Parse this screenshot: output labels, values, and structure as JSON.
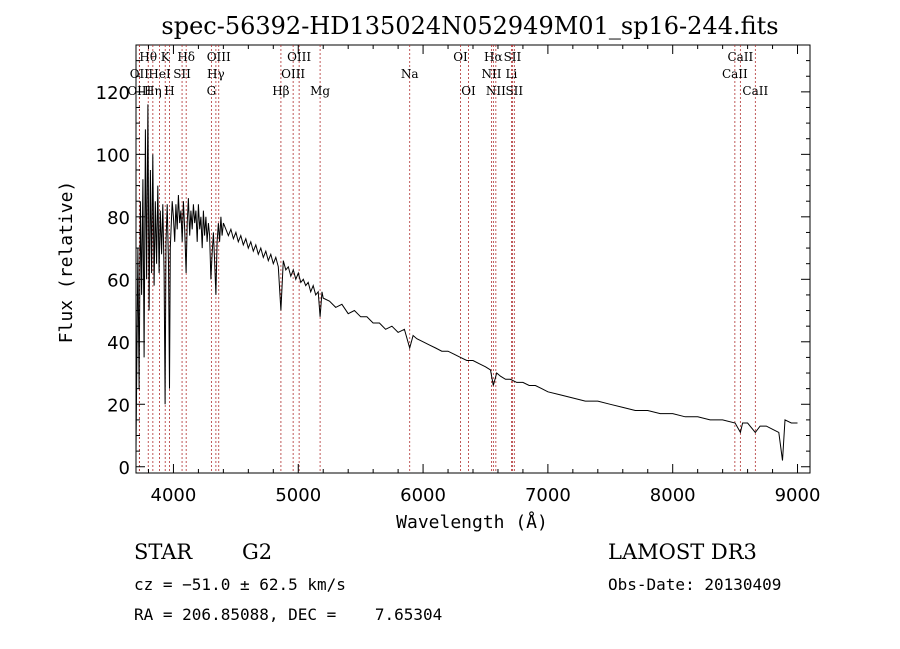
{
  "chart_data": {
    "type": "line",
    "title": "spec-56392-HD135024N052949M01_sp16-244.fits",
    "xlabel": "Wavelength (Å)",
    "ylabel": "Flux (relative)",
    "xlim": [
      3700,
      9100
    ],
    "ylim": [
      -2,
      135
    ],
    "xticks": [
      4000,
      5000,
      6000,
      7000,
      8000,
      9000
    ],
    "yticks": [
      0,
      20,
      40,
      60,
      80,
      100,
      120
    ],
    "grid": false,
    "series": [
      {
        "color": "#000000",
        "points": [
          [
            3700,
            5
          ],
          [
            3715,
            70
          ],
          [
            3725,
            25
          ],
          [
            3735,
            85
          ],
          [
            3745,
            55
          ],
          [
            3755,
            92
          ],
          [
            3765,
            35
          ],
          [
            3775,
            108
          ],
          [
            3785,
            60
          ],
          [
            3795,
            116
          ],
          [
            3805,
            50
          ],
          [
            3815,
            95
          ],
          [
            3825,
            62
          ],
          [
            3835,
            100
          ],
          [
            3845,
            58
          ],
          [
            3855,
            85
          ],
          [
            3865,
            65
          ],
          [
            3875,
            90
          ],
          [
            3885,
            62
          ],
          [
            3895,
            82
          ],
          [
            3905,
            68
          ],
          [
            3915,
            84
          ],
          [
            3925,
            62
          ],
          [
            3933,
            20
          ],
          [
            3940,
            72
          ],
          [
            3950,
            84
          ],
          [
            3960,
            65
          ],
          [
            3968,
            25
          ],
          [
            3975,
            70
          ],
          [
            3990,
            85
          ],
          [
            4000,
            80
          ],
          [
            4010,
            72
          ],
          [
            4020,
            84
          ],
          [
            4030,
            76
          ],
          [
            4040,
            87
          ],
          [
            4050,
            78
          ],
          [
            4060,
            82
          ],
          [
            4070,
            72
          ],
          [
            4080,
            85
          ],
          [
            4090,
            76
          ],
          [
            4101,
            62
          ],
          [
            4110,
            78
          ],
          [
            4120,
            86
          ],
          [
            4130,
            74
          ],
          [
            4140,
            82
          ],
          [
            4150,
            76
          ],
          [
            4160,
            84
          ],
          [
            4170,
            78
          ],
          [
            4180,
            82
          ],
          [
            4190,
            72
          ],
          [
            4200,
            84
          ],
          [
            4210,
            76
          ],
          [
            4220,
            80
          ],
          [
            4230,
            70
          ],
          [
            4240,
            82
          ],
          [
            4250,
            74
          ],
          [
            4260,
            80
          ],
          [
            4270,
            72
          ],
          [
            4280,
            78
          ],
          [
            4290,
            74
          ],
          [
            4300,
            60
          ],
          [
            4310,
            68
          ],
          [
            4320,
            75
          ],
          [
            4330,
            66
          ],
          [
            4340,
            55
          ],
          [
            4350,
            72
          ],
          [
            4360,
            78
          ],
          [
            4370,
            72
          ],
          [
            4380,
            80
          ],
          [
            4390,
            74
          ],
          [
            4400,
            78
          ],
          [
            4420,
            76
          ],
          [
            4440,
            74
          ],
          [
            4460,
            76
          ],
          [
            4480,
            73
          ],
          [
            4500,
            75
          ],
          [
            4520,
            72
          ],
          [
            4540,
            74
          ],
          [
            4560,
            71
          ],
          [
            4580,
            73
          ],
          [
            4600,
            70
          ],
          [
            4620,
            72
          ],
          [
            4640,
            69
          ],
          [
            4660,
            71
          ],
          [
            4680,
            68
          ],
          [
            4700,
            70
          ],
          [
            4720,
            67
          ],
          [
            4740,
            69
          ],
          [
            4760,
            66
          ],
          [
            4780,
            68
          ],
          [
            4800,
            65
          ],
          [
            4820,
            67
          ],
          [
            4840,
            64
          ],
          [
            4861,
            50
          ],
          [
            4880,
            66
          ],
          [
            4900,
            63
          ],
          [
            4920,
            64
          ],
          [
            4940,
            61
          ],
          [
            4960,
            63
          ],
          [
            4980,
            60
          ],
          [
            5000,
            62
          ],
          [
            5020,
            59
          ],
          [
            5040,
            60
          ],
          [
            5060,
            58
          ],
          [
            5080,
            59
          ],
          [
            5100,
            56
          ],
          [
            5120,
            58
          ],
          [
            5140,
            55
          ],
          [
            5160,
            56
          ],
          [
            5175,
            48
          ],
          [
            5190,
            56
          ],
          [
            5200,
            54
          ],
          [
            5250,
            53
          ],
          [
            5300,
            51
          ],
          [
            5350,
            52
          ],
          [
            5400,
            49
          ],
          [
            5450,
            50
          ],
          [
            5500,
            48
          ],
          [
            5550,
            48
          ],
          [
            5600,
            46
          ],
          [
            5650,
            46
          ],
          [
            5700,
            44
          ],
          [
            5750,
            45
          ],
          [
            5800,
            43
          ],
          [
            5850,
            44
          ],
          [
            5893,
            38
          ],
          [
            5920,
            42
          ],
          [
            5950,
            41
          ],
          [
            6000,
            40
          ],
          [
            6050,
            39
          ],
          [
            6100,
            38
          ],
          [
            6150,
            37
          ],
          [
            6200,
            37
          ],
          [
            6250,
            36
          ],
          [
            6300,
            35
          ],
          [
            6350,
            34
          ],
          [
            6400,
            34
          ],
          [
            6450,
            33
          ],
          [
            6500,
            32
          ],
          [
            6540,
            31
          ],
          [
            6563,
            26
          ],
          [
            6590,
            30
          ],
          [
            6620,
            29
          ],
          [
            6660,
            28
          ],
          [
            6700,
            28
          ],
          [
            6750,
            27
          ],
          [
            6800,
            27
          ],
          [
            6850,
            26
          ],
          [
            6900,
            26
          ],
          [
            6950,
            25
          ],
          [
            7000,
            24
          ],
          [
            7100,
            23
          ],
          [
            7200,
            22
          ],
          [
            7300,
            21
          ],
          [
            7400,
            21
          ],
          [
            7500,
            20
          ],
          [
            7600,
            19
          ],
          [
            7700,
            18
          ],
          [
            7800,
            18
          ],
          [
            7900,
            17
          ],
          [
            8000,
            17
          ],
          [
            8100,
            16
          ],
          [
            8200,
            16
          ],
          [
            8300,
            15
          ],
          [
            8400,
            15
          ],
          [
            8500,
            14
          ],
          [
            8542,
            11
          ],
          [
            8560,
            14
          ],
          [
            8600,
            14
          ],
          [
            8662,
            11
          ],
          [
            8700,
            13
          ],
          [
            8750,
            13
          ],
          [
            8800,
            12
          ],
          [
            8850,
            11
          ],
          [
            8880,
            2
          ],
          [
            8900,
            15
          ],
          [
            8950,
            14
          ],
          [
            9000,
            14
          ]
        ]
      }
    ],
    "line_markers": [
      {
        "label": "Hθ",
        "wl": 3798,
        "row": 0
      },
      {
        "label": "OII",
        "wl": 3727,
        "row": 1
      },
      {
        "label": "OIII",
        "wl": 3727,
        "row": 2
      },
      {
        "label": "K",
        "wl": 3934,
        "row": 0
      },
      {
        "label": "HeI",
        "wl": 3889,
        "row": 1
      },
      {
        "label": "Hη",
        "wl": 3835,
        "row": 2
      },
      {
        "label": "H",
        "wl": 3968,
        "row": 2
      },
      {
        "label": "Hδ",
        "wl": 4102,
        "row": 0
      },
      {
        "label": "SII",
        "wl": 4069,
        "row": 1
      },
      {
        "label": "OIII",
        "wl": 4363,
        "row": 0
      },
      {
        "label": "Hγ",
        "wl": 4340,
        "row": 1
      },
      {
        "label": "G",
        "wl": 4304,
        "row": 2
      },
      {
        "label": "Hβ",
        "wl": 4861,
        "row": 2
      },
      {
        "label": "OIII",
        "wl": 5007,
        "row": 0
      },
      {
        "label": "OIII",
        "wl": 4959,
        "row": 1
      },
      {
        "label": "Mg",
        "wl": 5175,
        "row": 2
      },
      {
        "label": "Na",
        "wl": 5893,
        "row": 1
      },
      {
        "label": "OI",
        "wl": 6300,
        "row": 0
      },
      {
        "label": "OI",
        "wl": 6364,
        "row": 2
      },
      {
        "label": "Hα",
        "wl": 6563,
        "row": 0
      },
      {
        "label": "SII",
        "wl": 6716,
        "row": 0
      },
      {
        "label": "NII",
        "wl": 6548,
        "row": 1
      },
      {
        "label": "Li",
        "wl": 6708,
        "row": 1
      },
      {
        "label": "NII",
        "wl": 6583,
        "row": 2
      },
      {
        "label": "SII",
        "wl": 6731,
        "row": 2
      },
      {
        "label": "CaII",
        "wl": 8542,
        "row": 0
      },
      {
        "label": "CaII",
        "wl": 8498,
        "row": 1
      },
      {
        "label": "CaII",
        "wl": 8662,
        "row": 2
      }
    ],
    "marker_color": "#b03030"
  },
  "footer": {
    "object_type": "STAR",
    "subclass": "G2",
    "survey": "LAMOST DR3",
    "cz": "cz = −51.0 ± 62.5 km/s",
    "obs_date": "Obs-Date: 20130409",
    "radec": "RA = 206.85088, DEC =    7.65304"
  }
}
